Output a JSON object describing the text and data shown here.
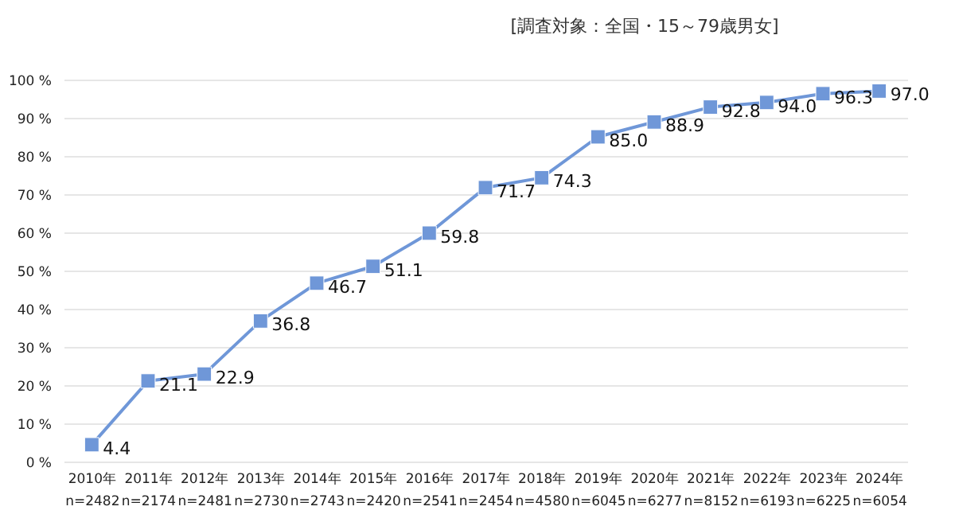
{
  "chart_data": {
    "type": "line",
    "title": "[調査対象：全国・15～79歳男女]",
    "categories": [
      "2010年\nn=2482",
      "2011年\nn=2174",
      "2012年\nn=2481",
      "2013年\nn=2730",
      "2014年\nn=2743",
      "2015年\nn=2420",
      "2016年\nn=2541",
      "2017年\nn=2454",
      "2018年\nn=4580",
      "2019年\nn=6045",
      "2020年\nn=6277",
      "2021年\nn=8152",
      "2022年\nn=6193",
      "2023年\nn=6225",
      "2024年\nn=6054"
    ],
    "series": [
      {
        "color": "#6f97d8",
        "values": [
          4.4,
          21.1,
          22.9,
          36.8,
          46.7,
          51.1,
          59.8,
          71.7,
          74.3,
          85.0,
          88.9,
          92.8,
          94.0,
          96.3,
          97.0
        ]
      }
    ],
    "value_labels": [
      "4.4",
      "21.1",
      "22.9",
      "36.8",
      "46.7",
      "51.1",
      "59.8",
      "71.7",
      "74.3",
      "85.0",
      "88.9",
      "92.8",
      "94.0",
      "96.3",
      "97.0"
    ],
    "ylim": [
      0,
      100
    ],
    "yticks": [
      {
        "value": 0,
        "label": "0 %"
      },
      {
        "value": 10,
        "label": "10 %"
      },
      {
        "value": 20,
        "label": "20 %"
      },
      {
        "value": 30,
        "label": "30 %"
      },
      {
        "value": 40,
        "label": "40 %"
      },
      {
        "value": 50,
        "label": "50 %"
      },
      {
        "value": 60,
        "label": "60 %"
      },
      {
        "value": 70,
        "label": "70 %"
      },
      {
        "value": 80,
        "label": "80 %"
      },
      {
        "value": 90,
        "label": "90 %"
      },
      {
        "value": 100,
        "label": "100 %"
      }
    ],
    "grid": "y",
    "marker": "square",
    "line_style": "solid",
    "legend": false
  }
}
